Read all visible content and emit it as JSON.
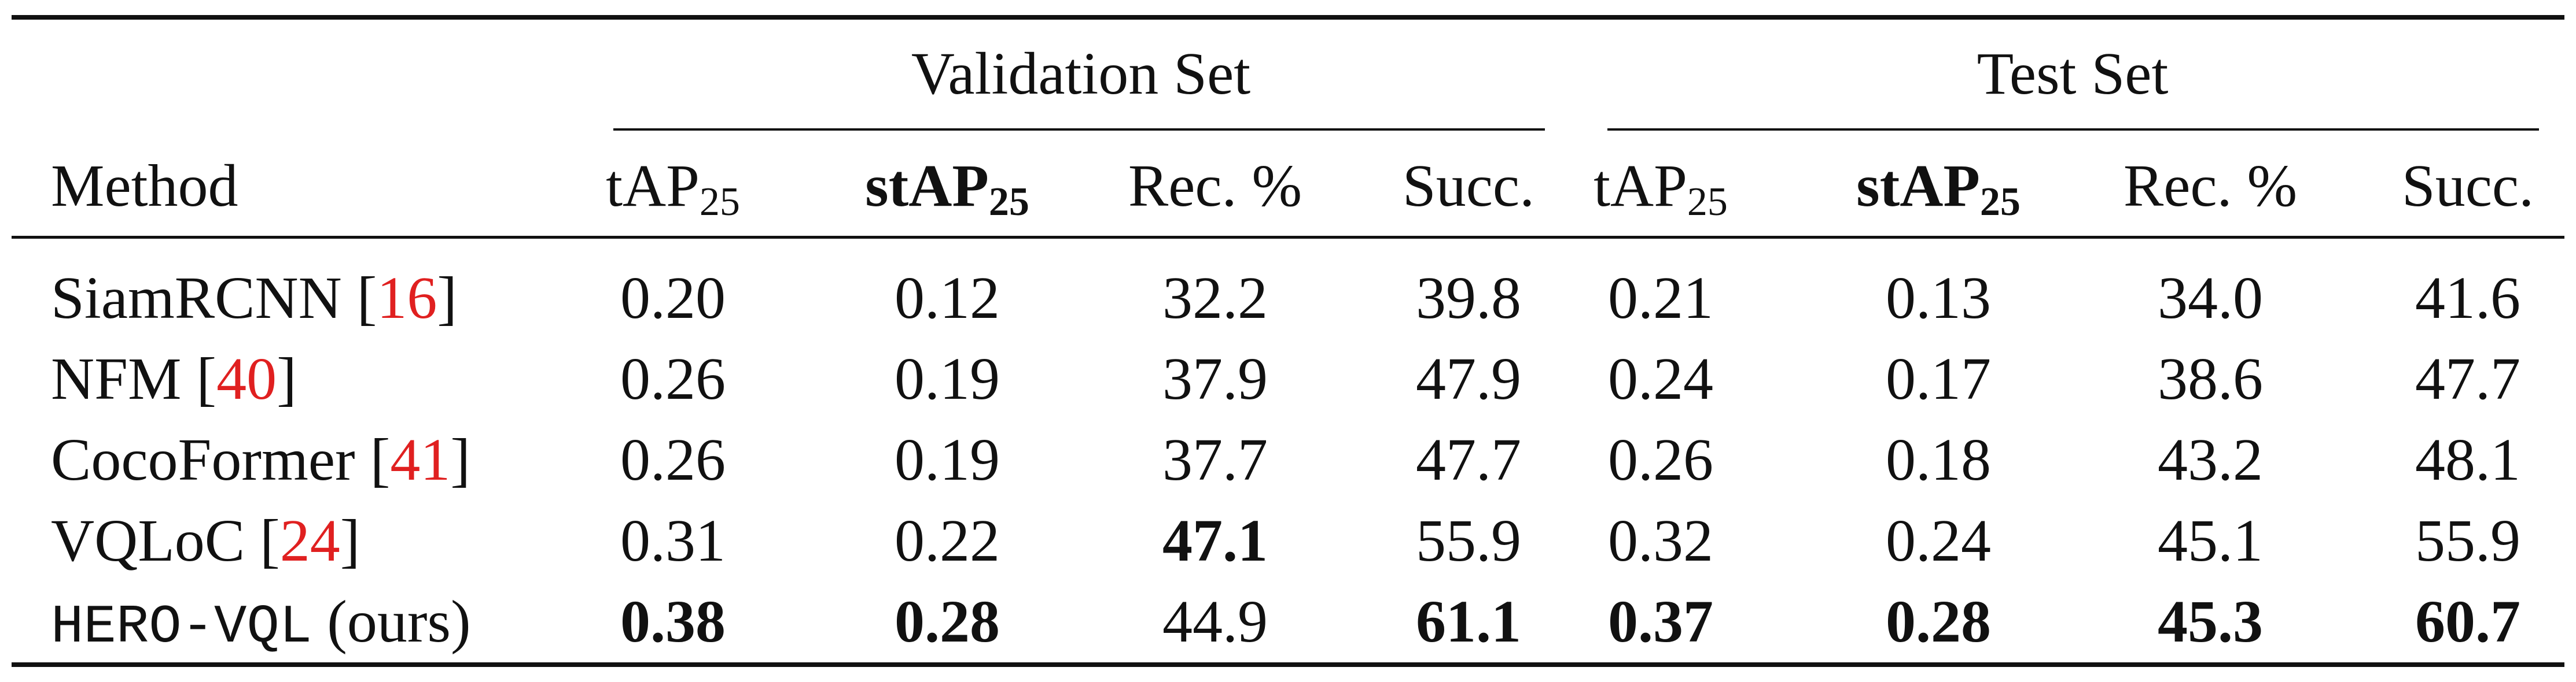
{
  "table": {
    "group_headers": [
      "Validation Set",
      "Test Set"
    ],
    "method_header": "Method",
    "columns": [
      {
        "base": "tAP",
        "sub": "25"
      },
      {
        "base": "stAP",
        "sub": "25"
      },
      {
        "base": "Rec. %",
        "sub": ""
      },
      {
        "base": "Succ.",
        "sub": ""
      },
      {
        "base": "tAP",
        "sub": "25"
      },
      {
        "base": "stAP",
        "sub": "25"
      },
      {
        "base": "Rec. %",
        "sub": ""
      },
      {
        "base": "Succ.",
        "sub": ""
      }
    ],
    "rows": [
      {
        "method": "SiamRCNN ",
        "cite": "16",
        "values": [
          "0.20",
          "0.12",
          "32.2",
          "39.8",
          "0.21",
          "0.13",
          "34.0",
          "41.6"
        ],
        "bold": []
      },
      {
        "method": "NFM ",
        "cite": "40",
        "values": [
          "0.26",
          "0.19",
          "37.9",
          "47.9",
          "0.24",
          "0.17",
          "38.6",
          "47.7"
        ],
        "bold": []
      },
      {
        "method": "CocoFormer ",
        "cite": "41",
        "values": [
          "0.26",
          "0.19",
          "37.7",
          "47.7",
          "0.26",
          "0.18",
          "43.2",
          "48.1"
        ],
        "bold": []
      },
      {
        "method": "VQLoC  ",
        "cite": "24",
        "values": [
          "0.31",
          "0.22",
          "47.1",
          "55.9",
          "0.32",
          "0.24",
          "45.1",
          "55.9"
        ],
        "bold": [
          2
        ]
      },
      {
        "method": "HERO-VQL",
        "suffix": " (ours)",
        "values": [
          "0.38",
          "0.28",
          "44.9",
          "61.1",
          "0.37",
          "0.28",
          "45.3",
          "60.7"
        ],
        "bold": [
          0,
          1,
          3,
          4,
          5,
          6,
          7
        ]
      }
    ]
  }
}
